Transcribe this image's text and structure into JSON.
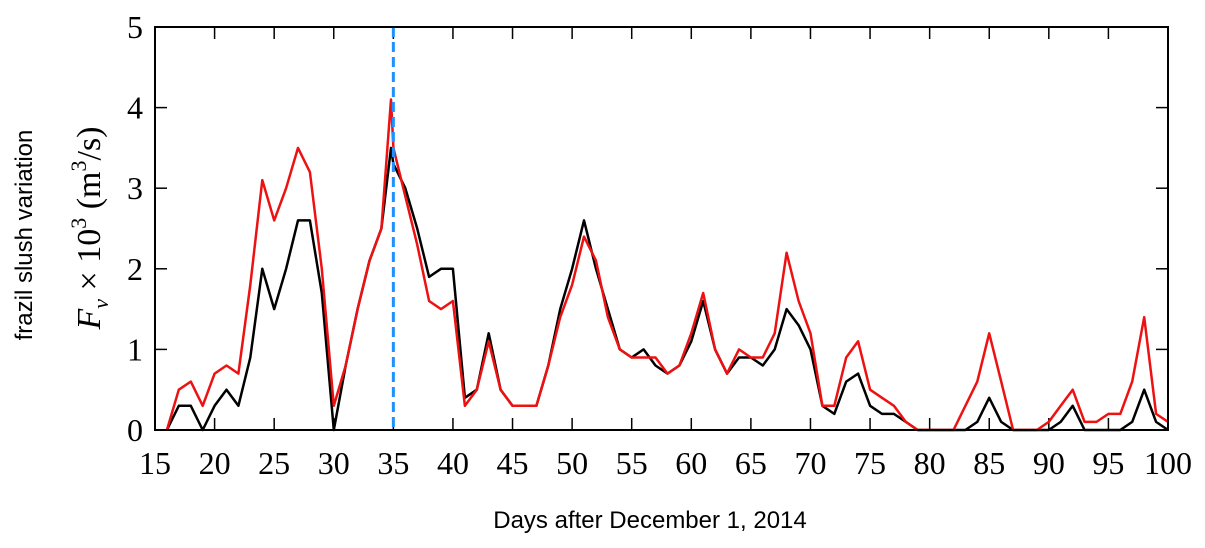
{
  "chart_data": {
    "type": "line",
    "ylabel_outer": "frazil slush variation",
    "ylabel": {
      "parts": [
        "F",
        "v",
        " × 10",
        "3",
        " (m",
        "3",
        "/s)"
      ]
    },
    "xlabel": "Days after December 1, 2014",
    "x": [
      16,
      17,
      18,
      19,
      20,
      21,
      22,
      23,
      24,
      25,
      26,
      27,
      28,
      29,
      30,
      31,
      32,
      33,
      34,
      34.8,
      35,
      36,
      37,
      38,
      39,
      40,
      41,
      42,
      43,
      44,
      45,
      46,
      47,
      48,
      49,
      50,
      51,
      52,
      53,
      54,
      55,
      56,
      57,
      58,
      59,
      60,
      61,
      62,
      63,
      64,
      65,
      66,
      67,
      68,
      69,
      70,
      71,
      72,
      73,
      74,
      75,
      76,
      77,
      78,
      79,
      80,
      81,
      82,
      83,
      84,
      85,
      86,
      87,
      88,
      89,
      90,
      91,
      92,
      93,
      94,
      95,
      96,
      97,
      98,
      99,
      100
    ],
    "series": [
      {
        "color": "#000000",
        "values": [
          0,
          0.3,
          0.3,
          0,
          0.3,
          0.5,
          0.3,
          0.9,
          2.0,
          1.5,
          2.0,
          2.6,
          2.6,
          1.7,
          0,
          0.8,
          1.5,
          2.1,
          2.5,
          3.5,
          3.3,
          3.0,
          2.5,
          1.9,
          2.0,
          2.0,
          0.4,
          0.5,
          1.2,
          0.5,
          0.3,
          0.3,
          0.3,
          0.8,
          1.5,
          2.0,
          2.6,
          2.0,
          1.5,
          1.0,
          0.9,
          1.0,
          0.8,
          0.7,
          0.8,
          1.1,
          1.6,
          1.0,
          0.7,
          0.9,
          0.9,
          0.8,
          1.0,
          1.5,
          1.3,
          1.0,
          0.3,
          0.2,
          0.6,
          0.7,
          0.3,
          0.2,
          0.2,
          0.1,
          0,
          0,
          0,
          0,
          0,
          0.1,
          0.4,
          0.1,
          0,
          0,
          0,
          0,
          0.1,
          0.3,
          0,
          0,
          0,
          0,
          0.1,
          0.5,
          0.1,
          0
        ]
      },
      {
        "color": "#ee1111",
        "values": [
          0,
          0.5,
          0.6,
          0.3,
          0.7,
          0.8,
          0.7,
          1.8,
          3.1,
          2.6,
          3.0,
          3.5,
          3.2,
          2.0,
          0.3,
          0.8,
          1.5,
          2.1,
          2.5,
          4.1,
          3.5,
          2.9,
          2.3,
          1.6,
          1.5,
          1.6,
          0.3,
          0.5,
          1.1,
          0.5,
          0.3,
          0.3,
          0.3,
          0.8,
          1.4,
          1.8,
          2.4,
          2.1,
          1.4,
          1.0,
          0.9,
          0.9,
          0.9,
          0.7,
          0.8,
          1.2,
          1.7,
          1.0,
          0.7,
          1.0,
          0.9,
          0.9,
          1.2,
          2.2,
          1.6,
          1.2,
          0.3,
          0.3,
          0.9,
          1.1,
          0.5,
          0.4,
          0.3,
          0.1,
          0,
          0,
          0,
          0,
          0.3,
          0.6,
          1.2,
          0.6,
          0,
          0,
          0,
          0.1,
          0.3,
          0.5,
          0.1,
          0.1,
          0.2,
          0.2,
          0.6,
          1.4,
          0.2,
          0.1
        ]
      }
    ],
    "vline": {
      "x": 35,
      "color": "#1e90ff"
    },
    "xlim": [
      15,
      100
    ],
    "xticks": [
      15,
      20,
      25,
      30,
      35,
      40,
      45,
      50,
      55,
      60,
      65,
      70,
      75,
      80,
      85,
      90,
      95,
      100
    ],
    "ylim": [
      0,
      5
    ],
    "yticks": [
      0,
      1,
      2,
      3,
      4,
      5
    ]
  }
}
